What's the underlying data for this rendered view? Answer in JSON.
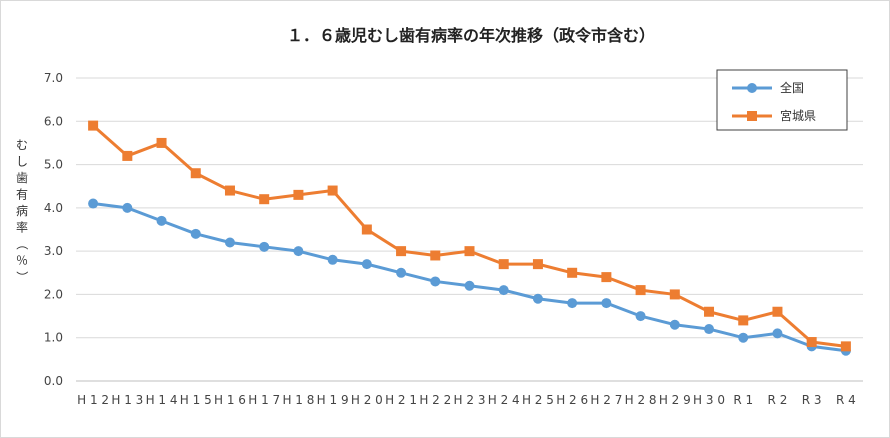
{
  "chart_data": {
    "type": "line",
    "title": "１．６歳児むし歯有病率の年次推移（政令市含む）",
    "ylabel": "むし歯有病率（％）",
    "xlabel": "",
    "ylim": [
      0,
      7
    ],
    "yticks": [
      "0.0",
      "1.0",
      "2.0",
      "3.0",
      "4.0",
      "5.0",
      "6.0",
      "7.0"
    ],
    "grid": true,
    "legend_position": "top-right",
    "categories": [
      "H12",
      "H13",
      "H14",
      "H15",
      "H16",
      "H17",
      "H18",
      "H19",
      "H20",
      "H21",
      "H22",
      "H23",
      "H24",
      "H25",
      "H26",
      "H27",
      "H28",
      "H29",
      "H30",
      "R1",
      "R2",
      "R3",
      "R4"
    ],
    "series": [
      {
        "name": "全国",
        "color": "#5b9bd5",
        "marker": "circle",
        "values": [
          4.1,
          4.0,
          3.7,
          3.4,
          3.2,
          3.1,
          3.0,
          2.8,
          2.7,
          2.5,
          2.3,
          2.2,
          2.1,
          1.9,
          1.8,
          1.8,
          1.5,
          1.3,
          1.2,
          1.0,
          1.1,
          0.8,
          0.7
        ]
      },
      {
        "name": "宮城県",
        "color": "#ed7d31",
        "marker": "square",
        "values": [
          5.9,
          5.2,
          5.5,
          4.8,
          4.4,
          4.2,
          4.3,
          4.4,
          3.5,
          3.0,
          2.9,
          3.0,
          2.7,
          2.7,
          2.5,
          2.4,
          2.1,
          2.0,
          1.6,
          1.4,
          1.6,
          0.9,
          0.8
        ]
      }
    ]
  }
}
